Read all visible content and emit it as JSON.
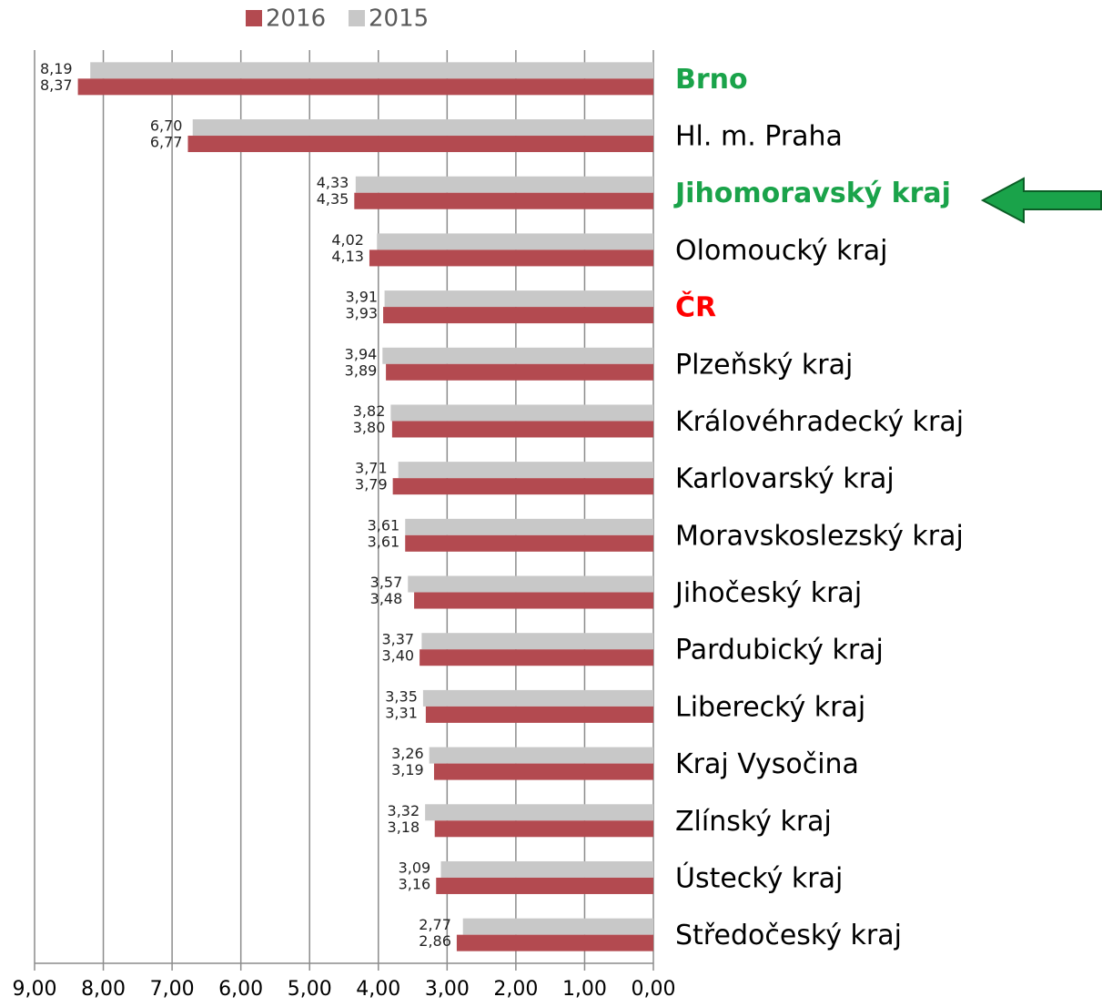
{
  "chart_data": {
    "type": "barh",
    "categories": [
      "Brno",
      "Hl. m. Praha",
      "Jihomoravský kraj",
      "Olomoucký kraj",
      "ČR",
      "Plzeňský kraj",
      "Královéhradecký kraj",
      "Karlovarský kraj",
      "Moravskoslezský kraj",
      "Jihočeský kraj",
      "Pardubický kraj",
      "Liberecký kraj",
      "Kraj Vysočina",
      "Zlínský kraj",
      "Ústecký kraj",
      "Středočeský kraj"
    ],
    "label_colors": [
      "#1aa34a",
      "#000000",
      "#1aa34a",
      "#000000",
      "#ff0000",
      "#000000",
      "#000000",
      "#000000",
      "#000000",
      "#000000",
      "#000000",
      "#000000",
      "#000000",
      "#000000",
      "#000000",
      "#000000"
    ],
    "series": [
      {
        "name": "2016",
        "color": "#b34a50",
        "values": [
          8.37,
          6.77,
          4.35,
          4.13,
          3.93,
          3.89,
          3.8,
          3.79,
          3.61,
          3.48,
          3.4,
          3.31,
          3.19,
          3.18,
          3.16,
          2.86
        ],
        "value_labels": [
          "8,37",
          "6,77",
          "4,35",
          "4,13",
          "3,93",
          "3,89",
          "3,80",
          "3,79",
          "3,61",
          "3,48",
          "3,40",
          "3,31",
          "3,19",
          "3,18",
          "3,16",
          "2,86"
        ]
      },
      {
        "name": "2015",
        "color": "#c8c8c8",
        "values": [
          8.19,
          6.7,
          4.33,
          4.02,
          3.91,
          3.94,
          3.82,
          3.71,
          3.61,
          3.57,
          3.37,
          3.35,
          3.26,
          3.32,
          3.09,
          2.77
        ],
        "value_labels": [
          "8,19",
          "6,70",
          "4,33",
          "4,02",
          "3,91",
          "3,94",
          "3,82",
          "3,71",
          "3,61",
          "3,57",
          "3,37",
          "3,35",
          "3,26",
          "3,32",
          "3,09",
          "2,77"
        ]
      }
    ],
    "xlim": [
      9,
      0
    ],
    "xticks": [
      {
        "value": 9,
        "label": "9,00"
      },
      {
        "value": 8,
        "label": "8,00"
      },
      {
        "value": 7,
        "label": "7,00"
      },
      {
        "value": 6,
        "label": "6,00"
      },
      {
        "value": 5,
        "label": "5,00"
      },
      {
        "value": 4,
        "label": "4,00"
      },
      {
        "value": 3,
        "label": "3,00"
      },
      {
        "value": 2,
        "label": "2,00"
      },
      {
        "value": 1,
        "label": "1,00"
      },
      {
        "value": 0,
        "label": "0,00"
      }
    ],
    "grid": true,
    "legend": "top"
  }
}
